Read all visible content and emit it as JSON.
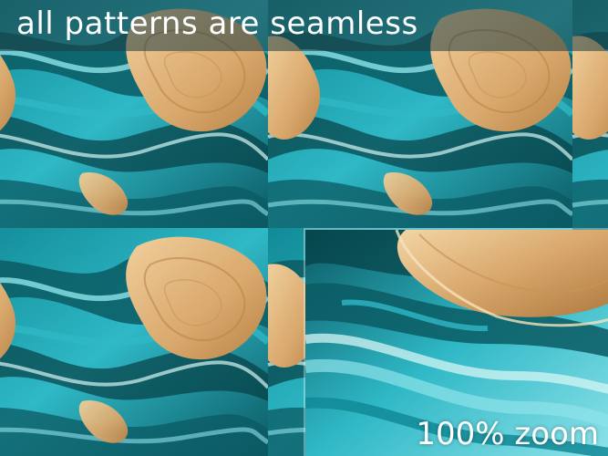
{
  "banner": {
    "title": "all patterns are seamless"
  },
  "zoom_panel": {
    "label": "100% zoom"
  },
  "colors": {
    "teal_dark": "#0b5a63",
    "teal_mid": "#118a96",
    "turquoise": "#2fb8c6",
    "aqua_light": "#8fe3ea",
    "foam": "#d6f5f4",
    "sand": "#d9a86c",
    "sand_light": "#f0cf9c",
    "deep": "#063e45"
  }
}
